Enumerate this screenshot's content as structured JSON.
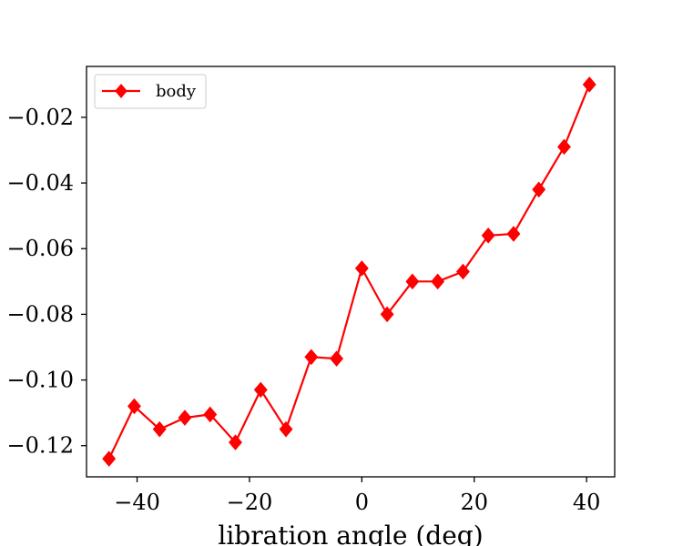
{
  "chart_data": {
    "type": "line",
    "title": "",
    "xlabel": "libration angle (deg)",
    "ylabel": "",
    "xlim": [
      -49,
      45
    ],
    "ylim": [
      -0.1295,
      -0.0045
    ],
    "xticks": [
      -40,
      -20,
      0,
      20,
      40
    ],
    "yticks": [
      -0.12,
      -0.1,
      -0.08,
      -0.06,
      -0.04,
      -0.02
    ],
    "xtick_labels": [
      "−40",
      "−20",
      "0",
      "20",
      "40"
    ],
    "ytick_labels": [
      "−0.12",
      "−0.10",
      "−0.08",
      "−0.06",
      "−0.04",
      "−0.02"
    ],
    "grid": false,
    "legend_position": "top-left",
    "series": [
      {
        "name": "body",
        "color": "#ff0000",
        "marker": "diamond",
        "x": [
          -45,
          -40.5,
          -36,
          -31.5,
          -27,
          -22.5,
          -18,
          -13.5,
          -9,
          -4.5,
          0,
          4.5,
          9,
          13.5,
          18,
          22.5,
          27,
          31.5,
          36,
          40.5
        ],
        "y": [
          -0.124,
          -0.108,
          -0.115,
          -0.1115,
          -0.1105,
          -0.119,
          -0.103,
          -0.115,
          -0.093,
          -0.0935,
          -0.066,
          -0.08,
          -0.07,
          -0.07,
          -0.067,
          -0.056,
          -0.0555,
          -0.042,
          -0.029,
          -0.01
        ]
      }
    ]
  }
}
